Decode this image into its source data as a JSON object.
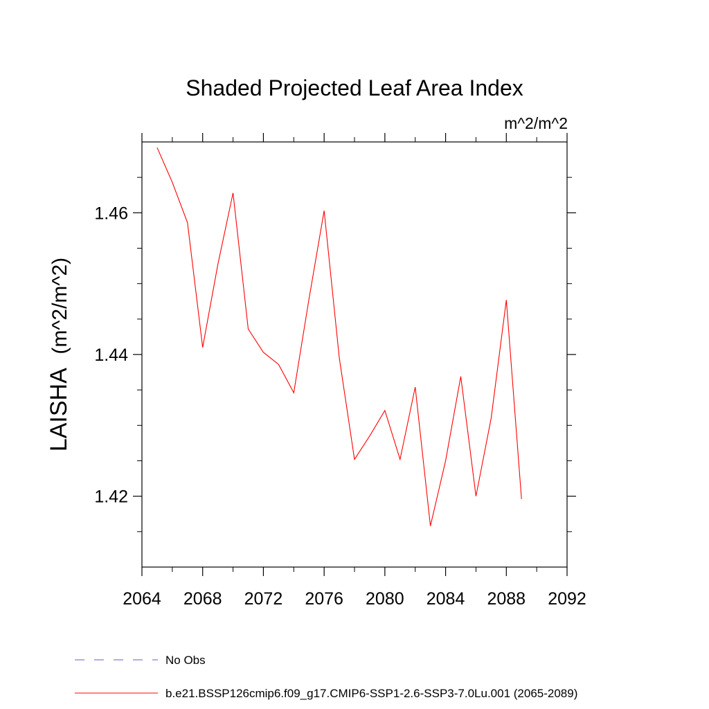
{
  "chart_data": {
    "type": "line",
    "title": "Shaded Projected Leaf Area Index",
    "units": "m^2/m^2",
    "ylabel_main": "LAISHA",
    "ylabel_units": "(m^2/m^2)",
    "xlabel": "",
    "xlim": [
      2064,
      2092
    ],
    "ylim": [
      1.41,
      1.47
    ],
    "x_ticks": [
      2064,
      2068,
      2072,
      2076,
      2080,
      2084,
      2088,
      2092
    ],
    "x_tick_labels": [
      "2064",
      "2068",
      "2072",
      "2076",
      "2080",
      "2084",
      "2088",
      "2092"
    ],
    "y_ticks": [
      1.42,
      1.44,
      1.46
    ],
    "y_tick_labels": [
      "1.42",
      "1.44",
      "1.46"
    ],
    "x": [
      2065,
      2066,
      2067,
      2068,
      2069,
      2070,
      2071,
      2072,
      2073,
      2074,
      2075,
      2076,
      2077,
      2078,
      2079,
      2080,
      2081,
      2082,
      2083,
      2084,
      2085,
      2086,
      2087,
      2088,
      2089
    ],
    "series": [
      {
        "name": "b.e21.BSSP126cmip6.f09_g17.CMIP6-SSP1-2.6-SSP3-7.0Lu.001 (2065-2089)",
        "color": "#ff0000",
        "values": [
          1.4692,
          1.4643,
          1.4586,
          1.441,
          1.4527,
          1.4628,
          1.4436,
          1.4403,
          1.4386,
          1.4346,
          1.4478,
          1.4603,
          1.4395,
          1.4252,
          1.4285,
          1.4321,
          1.4252,
          1.4354,
          1.4158,
          1.425,
          1.4369,
          1.42,
          1.431,
          1.4477,
          1.4196
        ]
      }
    ],
    "legend": [
      {
        "label": "No Obs",
        "color": "#6a5acd",
        "style": "dashed"
      },
      {
        "label": "b.e21.BSSP126cmip6.f09_g17.CMIP6-SSP1-2.6-SSP3-7.0Lu.001 (2065-2089)",
        "color": "#ff0000",
        "style": "solid"
      }
    ],
    "legend_position": "bottom-left",
    "grid": false
  }
}
